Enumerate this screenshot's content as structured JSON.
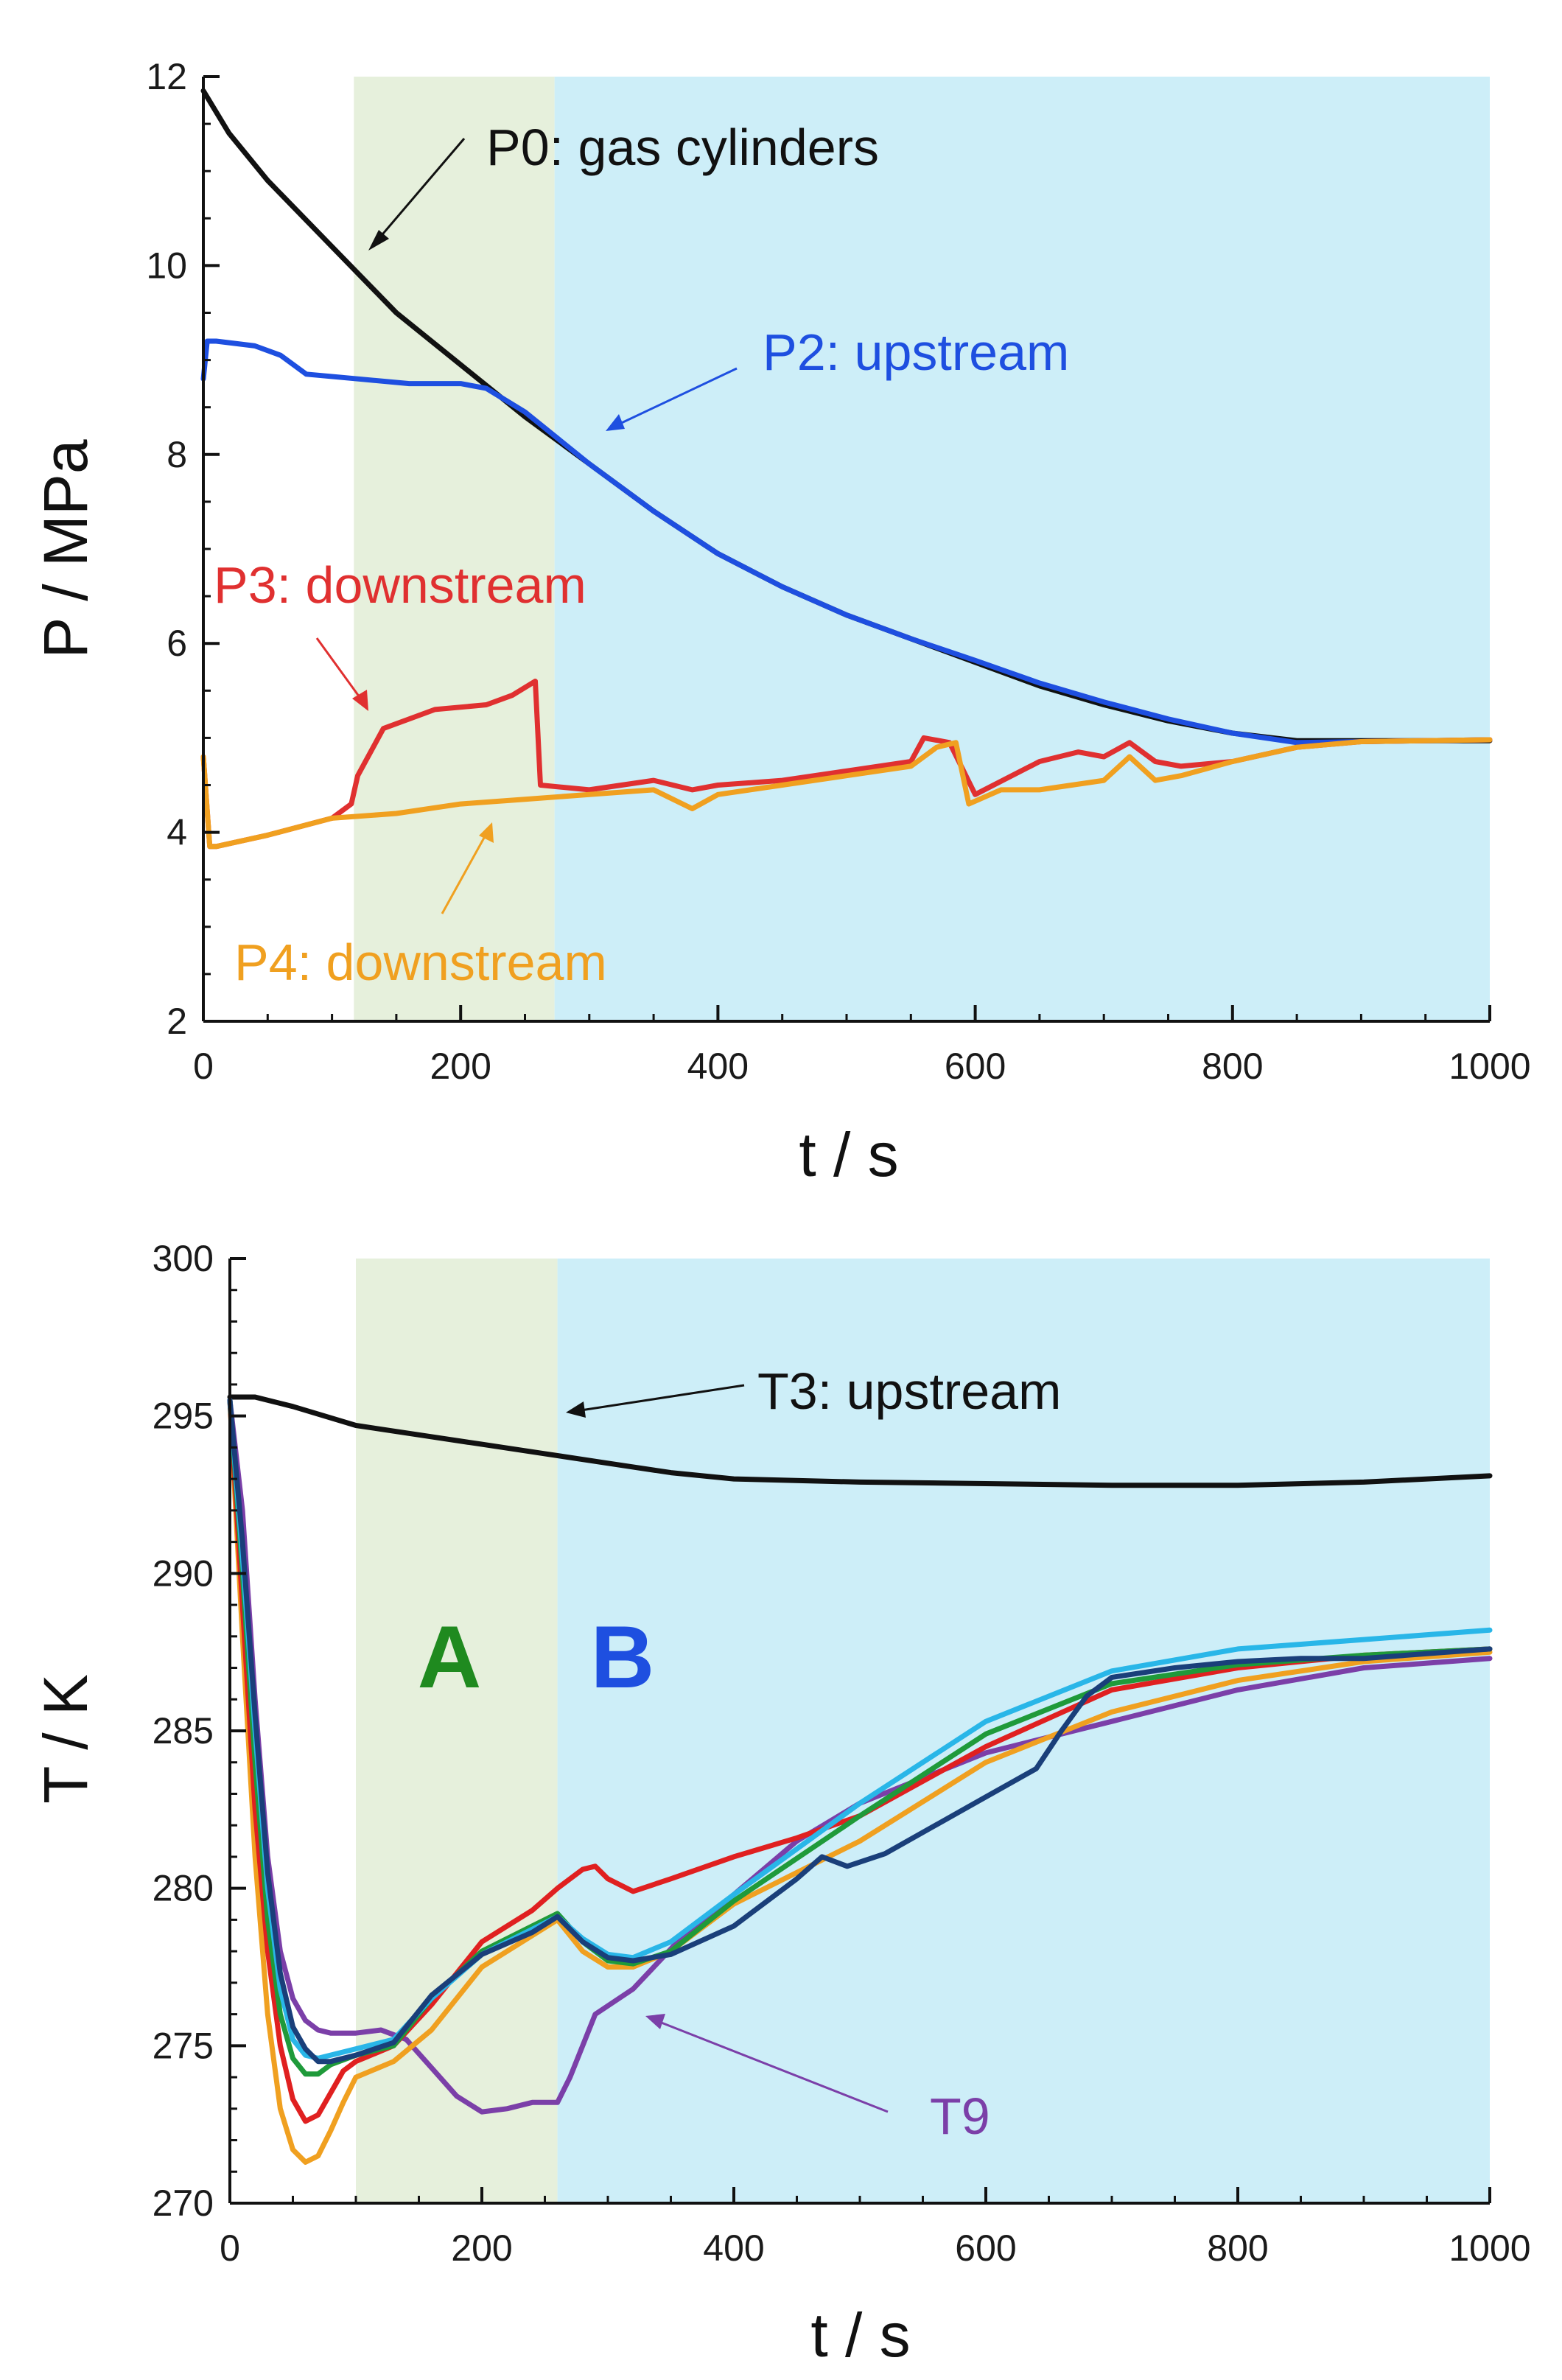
{
  "chart_data": [
    {
      "type": "line",
      "xlabel": "t / s",
      "ylabel": "P / MPa",
      "xlim": [
        0,
        1000
      ],
      "ylim": [
        2,
        12
      ],
      "xticks": [
        0,
        200,
        400,
        600,
        800,
        1000
      ],
      "yticks": [
        2,
        4,
        6,
        8,
        10,
        12
      ],
      "shaded_regions": [
        {
          "x": [
            117,
            273
          ],
          "color": "#e6f0dc"
        },
        {
          "x": [
            273,
            1000
          ],
          "color": "#cdeef8"
        }
      ],
      "series": [
        {
          "name": "P0: gas cylinders",
          "color": "#111111",
          "x": [
            0,
            20,
            50,
            100,
            150,
            200,
            250,
            300,
            350,
            400,
            450,
            500,
            550,
            600,
            650,
            700,
            750,
            800,
            850,
            900,
            950,
            1000
          ],
          "y": [
            11.85,
            11.4,
            10.9,
            10.2,
            9.5,
            8.95,
            8.4,
            7.9,
            7.4,
            6.95,
            6.6,
            6.3,
            6.05,
            5.8,
            5.55,
            5.35,
            5.18,
            5.05,
            4.97,
            4.97,
            4.97,
            4.97
          ]
        },
        {
          "name": "P2: upstream",
          "color": "#1e4fe0",
          "x": [
            0,
            3,
            10,
            40,
            60,
            80,
            120,
            160,
            200,
            220,
            250,
            300,
            350,
            400,
            450,
            500,
            550,
            600,
            650,
            700,
            750,
            800,
            850,
            900,
            1000
          ],
          "y": [
            8.8,
            9.2,
            9.2,
            9.15,
            9.05,
            8.85,
            8.8,
            8.75,
            8.75,
            8.7,
            8.45,
            7.9,
            7.4,
            6.95,
            6.6,
            6.3,
            6.05,
            5.82,
            5.58,
            5.38,
            5.2,
            5.05,
            4.95,
            4.96,
            4.98
          ]
        },
        {
          "name": "P3: downstream",
          "color": "#e03030",
          "x": [
            0,
            5,
            10,
            50,
            100,
            115,
            120,
            140,
            180,
            220,
            240,
            258,
            262,
            300,
            350,
            380,
            400,
            450,
            500,
            550,
            560,
            580,
            600,
            650,
            680,
            700,
            720,
            740,
            760,
            800,
            850,
            900,
            1000
          ],
          "y": [
            4.8,
            3.85,
            3.85,
            3.97,
            4.15,
            4.3,
            4.6,
            5.1,
            5.3,
            5.35,
            5.45,
            5.6,
            4.5,
            4.45,
            4.55,
            4.45,
            4.5,
            4.55,
            4.65,
            4.75,
            5.0,
            4.95,
            4.4,
            4.75,
            4.85,
            4.8,
            4.95,
            4.75,
            4.7,
            4.75,
            4.9,
            4.96,
            4.98
          ]
        },
        {
          "name": "P4: downstream",
          "color": "#f0a020",
          "x": [
            0,
            5,
            10,
            50,
            100,
            150,
            200,
            250,
            300,
            350,
            380,
            400,
            450,
            500,
            550,
            570,
            585,
            595,
            620,
            650,
            700,
            720,
            740,
            760,
            800,
            850,
            900,
            1000
          ],
          "y": [
            4.8,
            3.85,
            3.85,
            3.97,
            4.15,
            4.2,
            4.3,
            4.35,
            4.4,
            4.45,
            4.25,
            4.4,
            4.5,
            4.6,
            4.7,
            4.9,
            4.95,
            4.3,
            4.45,
            4.45,
            4.55,
            4.8,
            4.55,
            4.6,
            4.75,
            4.9,
            4.96,
            4.98
          ]
        }
      ]
    },
    {
      "type": "line",
      "xlabel": "t / s",
      "ylabel": "T / K",
      "xlim": [
        0,
        1000
      ],
      "ylim": [
        270,
        300
      ],
      "xticks": [
        0,
        200,
        400,
        600,
        800,
        1000
      ],
      "yticks": [
        270,
        275,
        280,
        285,
        290,
        295,
        300
      ],
      "shaded_regions": [
        {
          "x": [
            100,
            260
          ],
          "color": "#e6f0dc",
          "label": "A",
          "label_color": "#1f8a1f"
        },
        {
          "x": [
            260,
            1000
          ],
          "color": "#cdeef8",
          "label": "B",
          "label_color": "#1e4fe0"
        }
      ],
      "series": [
        {
          "name": "T3: upstream",
          "color": "#111111",
          "x": [
            0,
            20,
            50,
            100,
            150,
            200,
            250,
            300,
            350,
            400,
            500,
            600,
            700,
            800,
            900,
            1000
          ],
          "y": [
            295.6,
            295.6,
            295.3,
            294.7,
            294.4,
            294.1,
            293.8,
            293.5,
            293.2,
            293.0,
            292.9,
            292.85,
            292.8,
            292.8,
            292.9,
            293.1
          ]
        },
        {
          "name": "T9",
          "color": "#7b3fa8",
          "x": [
            0,
            10,
            20,
            30,
            40,
            50,
            60,
            70,
            80,
            90,
            100,
            120,
            140,
            160,
            180,
            200,
            220,
            240,
            260,
            270,
            290,
            320,
            360,
            400,
            450,
            500,
            600,
            700,
            800,
            900,
            1000
          ],
          "y": [
            295.5,
            292,
            286,
            281,
            278,
            276.5,
            275.8,
            275.5,
            275.4,
            275.4,
            275.4,
            275.5,
            275.2,
            274.3,
            273.4,
            272.9,
            273.0,
            273.2,
            273.2,
            274,
            276,
            276.8,
            278.5,
            279.8,
            281.5,
            282.7,
            284.3,
            285.3,
            286.3,
            287,
            287.3
          ]
        },
        {
          "name": "",
          "color": "#f0a020",
          "x": [
            0,
            10,
            20,
            30,
            40,
            50,
            60,
            70,
            80,
            90,
            100,
            130,
            160,
            200,
            240,
            260,
            280,
            300,
            320,
            350,
            400,
            500,
            600,
            700,
            800,
            900,
            1000
          ],
          "y": [
            295.5,
            288,
            281,
            276,
            273,
            271.7,
            271.3,
            271.5,
            272.3,
            273.2,
            274.0,
            274.5,
            275.5,
            277.5,
            278.5,
            279,
            278,
            277.5,
            277.5,
            278,
            279.5,
            281.5,
            284,
            285.6,
            286.6,
            287.2,
            287.5
          ]
        },
        {
          "name": "",
          "color": "#e02020",
          "x": [
            0,
            10,
            20,
            30,
            40,
            50,
            60,
            70,
            80,
            90,
            100,
            130,
            160,
            200,
            240,
            260,
            280,
            290,
            300,
            320,
            350,
            400,
            450,
            500,
            600,
            700,
            800,
            900,
            1000
          ],
          "y": [
            295.5,
            289,
            282.5,
            278,
            275,
            273.3,
            272.6,
            272.8,
            273.5,
            274.2,
            274.5,
            275,
            276.3,
            278.3,
            279.3,
            280,
            280.6,
            280.7,
            280.3,
            279.9,
            280.3,
            281.0,
            281.6,
            282.3,
            284.5,
            286.3,
            287,
            287.4,
            287.6
          ]
        },
        {
          "name": "",
          "color": "#1f9a3a",
          "x": [
            0,
            10,
            20,
            30,
            40,
            50,
            60,
            70,
            80,
            100,
            130,
            160,
            200,
            240,
            260,
            280,
            300,
            320,
            350,
            400,
            500,
            600,
            700,
            800,
            900,
            1000
          ],
          "y": [
            295.5,
            290,
            284,
            279,
            276,
            274.6,
            274.1,
            274.1,
            274.4,
            274.7,
            275.0,
            276.5,
            278.0,
            278.8,
            279.2,
            278.3,
            277.7,
            277.6,
            278,
            279.6,
            282.3,
            284.9,
            286.5,
            287.1,
            287.4,
            287.6
          ]
        },
        {
          "name": "",
          "color": "#29b6e8",
          "x": [
            0,
            10,
            20,
            30,
            40,
            50,
            60,
            70,
            80,
            100,
            130,
            160,
            200,
            240,
            260,
            280,
            300,
            320,
            350,
            400,
            500,
            600,
            700,
            800,
            900,
            1000
          ],
          "y": [
            295.5,
            290.5,
            285,
            280,
            276.8,
            275.2,
            274.7,
            274.6,
            274.7,
            274.9,
            275.2,
            276.5,
            277.9,
            278.7,
            279.1,
            278.4,
            277.9,
            277.8,
            278.3,
            279.8,
            282.7,
            285.3,
            286.9,
            287.6,
            287.9,
            288.2
          ]
        },
        {
          "name": "",
          "color": "#1a3f7a",
          "x": [
            0,
            10,
            20,
            30,
            40,
            50,
            60,
            70,
            80,
            100,
            130,
            160,
            200,
            240,
            260,
            280,
            300,
            320,
            350,
            400,
            450,
            470,
            490,
            520,
            560,
            600,
            640,
            660,
            680,
            700,
            750,
            800,
            850,
            900,
            1000
          ],
          "y": [
            295.5,
            291,
            285.5,
            280.5,
            277.3,
            275.6,
            274.9,
            274.5,
            274.5,
            274.7,
            275.1,
            276.6,
            277.9,
            278.6,
            279.1,
            278.3,
            277.8,
            277.7,
            277.9,
            278.8,
            280.3,
            281.0,
            280.7,
            281.1,
            282.0,
            282.9,
            283.8,
            285.0,
            286.1,
            286.7,
            287.0,
            287.2,
            287.3,
            287.3,
            287.6
          ]
        }
      ]
    }
  ],
  "annotations": {
    "p0": {
      "text": "P0: gas cylinders",
      "color": "#111111"
    },
    "p2": {
      "text": "P2: upstream",
      "color": "#1e4fe0"
    },
    "p3": {
      "text": "P3: downstream",
      "color": "#e03030"
    },
    "p4": {
      "text": "P4: downstream",
      "color": "#f0a020"
    },
    "t3": {
      "text": "T3: upstream",
      "color": "#111111"
    },
    "t9": {
      "text": "T9",
      "color": "#7b3fa8"
    }
  }
}
